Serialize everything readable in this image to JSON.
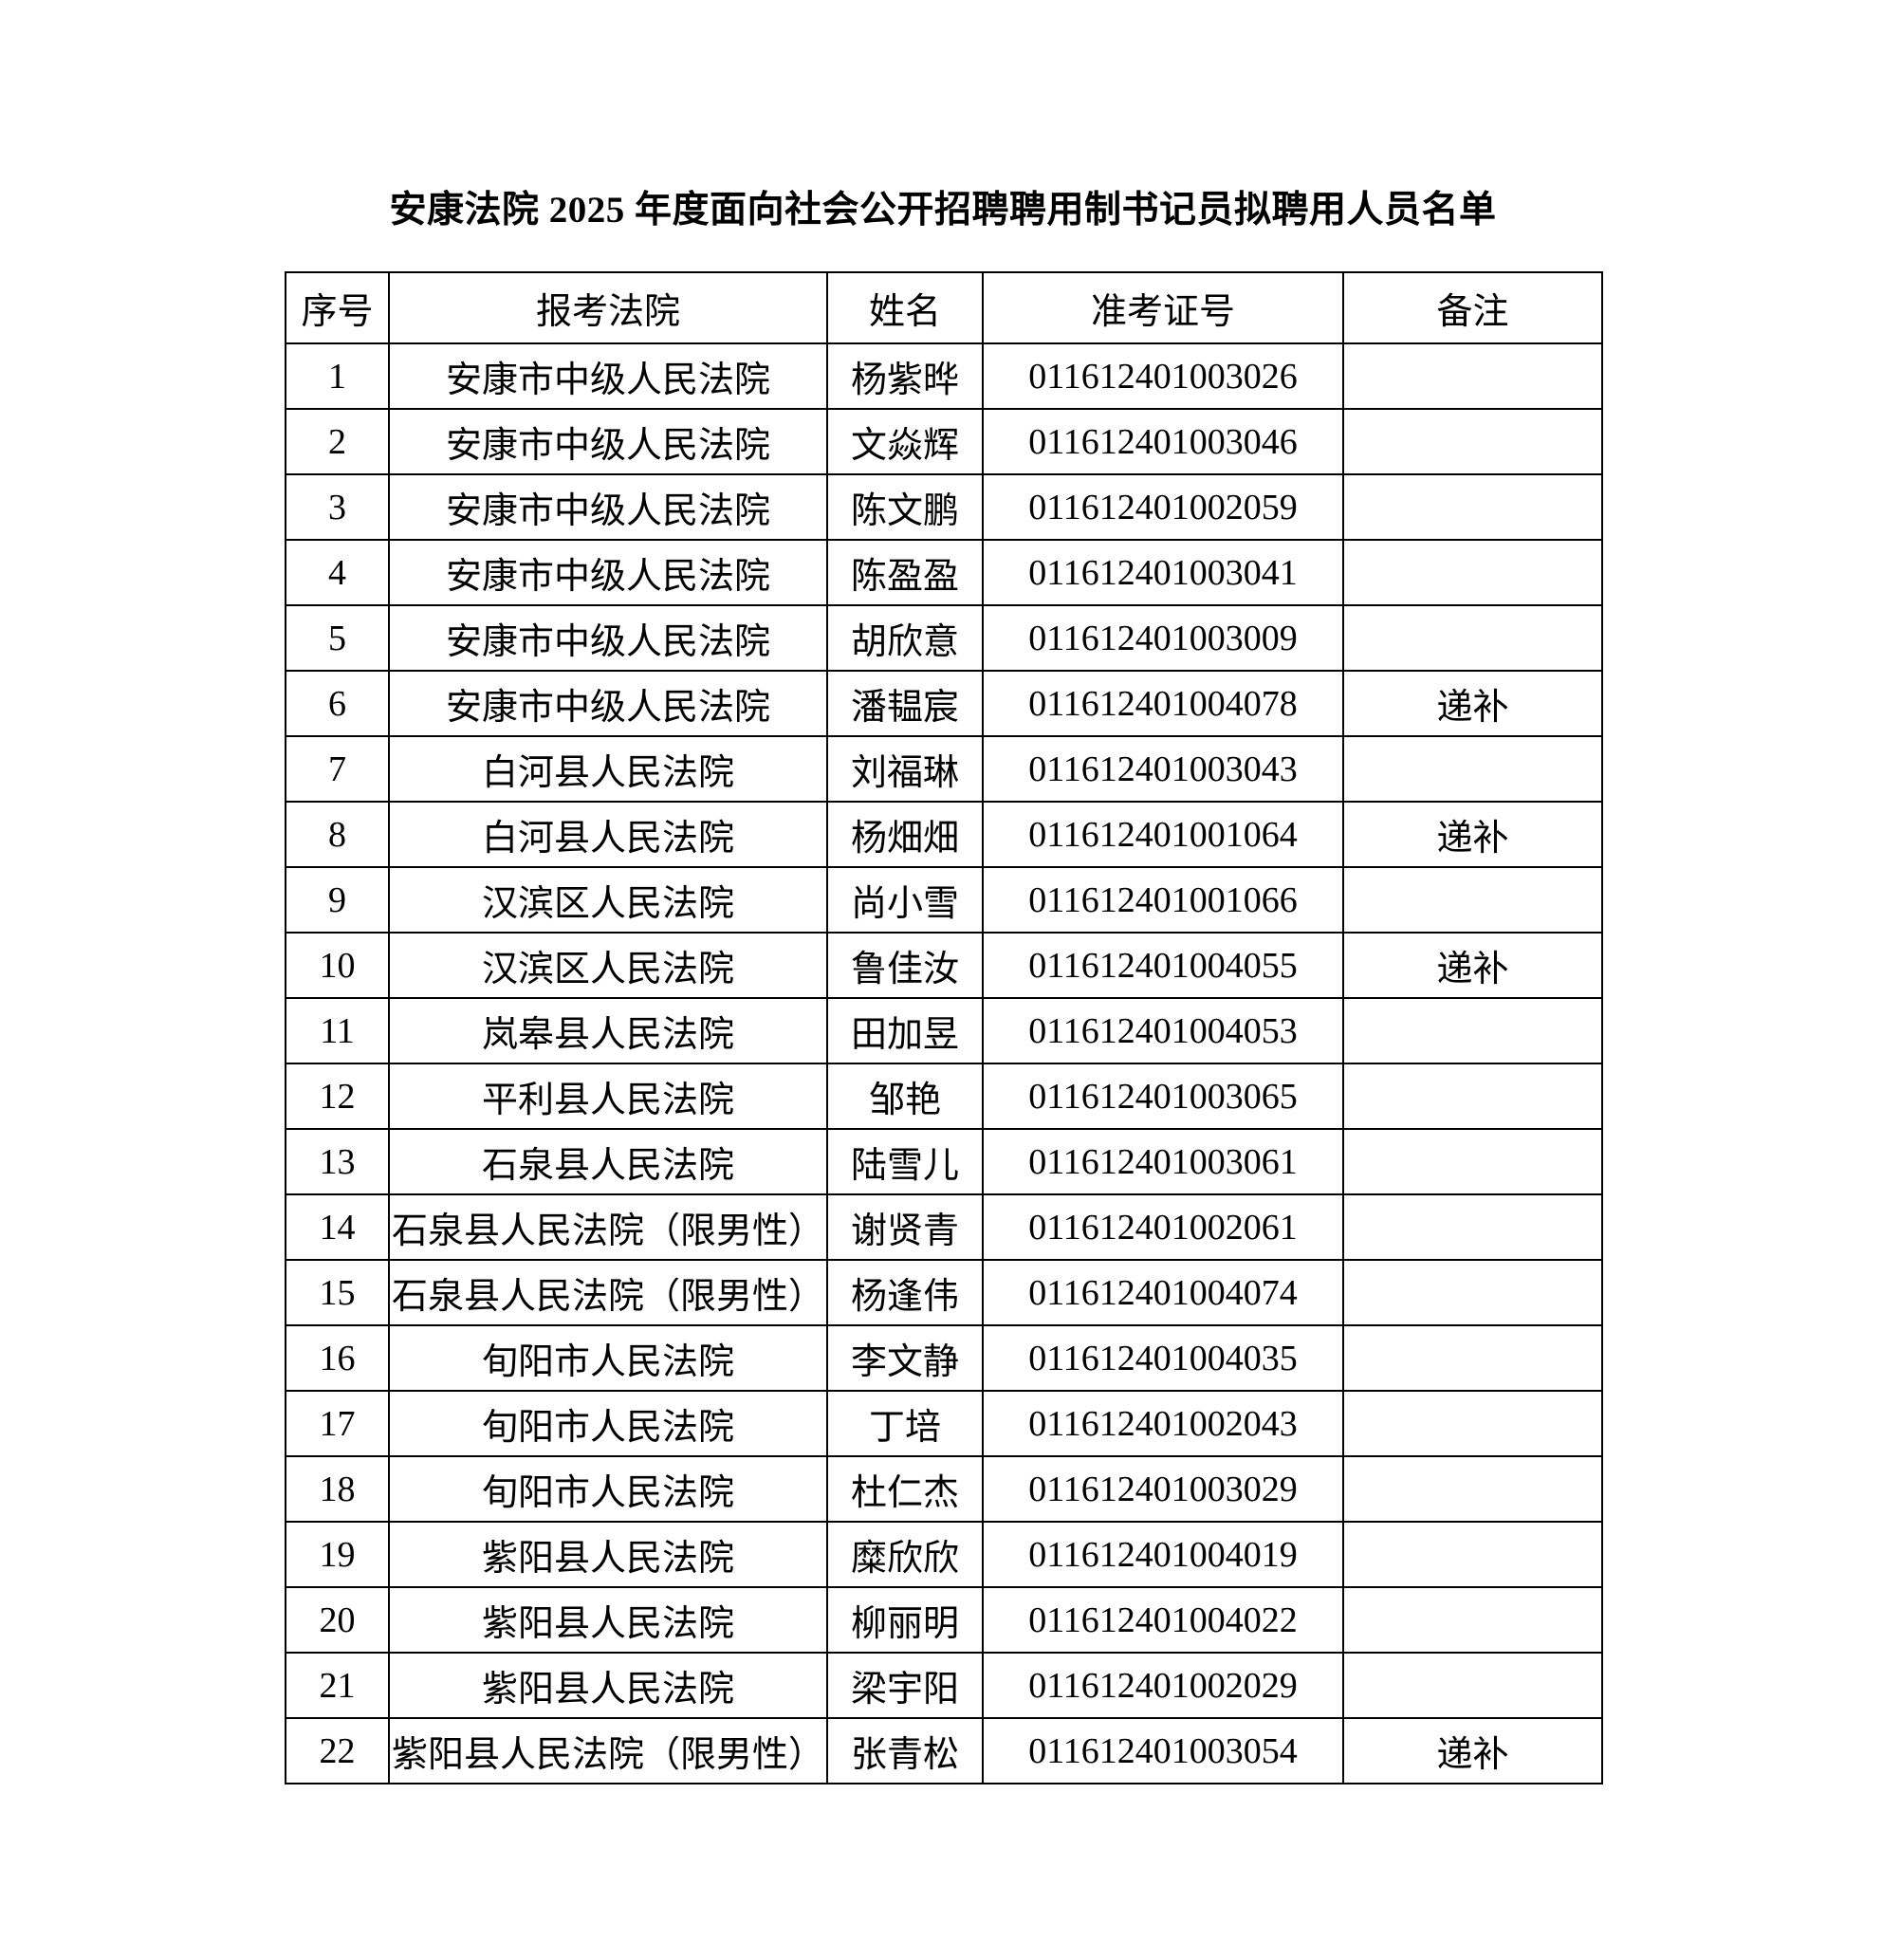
{
  "page": {
    "title": "安康法院 2025 年度面向社会公开招聘聘用制书记员拟聘用人员名单"
  },
  "table": {
    "headers": {
      "index": "序号",
      "court": "报考法院",
      "name": "姓名",
      "ticket": "准考证号",
      "remark": "备注"
    },
    "remark_value_substitute": "递补",
    "rows": [
      {
        "no": "1",
        "court": "安康市中级人民法院",
        "name": "杨紫晔",
        "ticket": "011612401003026",
        "note": ""
      },
      {
        "no": "2",
        "court": "安康市中级人民法院",
        "name": "文焱辉",
        "ticket": "011612401003046",
        "note": ""
      },
      {
        "no": "3",
        "court": "安康市中级人民法院",
        "name": "陈文鹏",
        "ticket": "011612401002059",
        "note": ""
      },
      {
        "no": "4",
        "court": "安康市中级人民法院",
        "name": "陈盈盈",
        "ticket": "011612401003041",
        "note": ""
      },
      {
        "no": "5",
        "court": "安康市中级人民法院",
        "name": "胡欣意",
        "ticket": "011612401003009",
        "note": ""
      },
      {
        "no": "6",
        "court": "安康市中级人民法院",
        "name": "潘韫宸",
        "ticket": "011612401004078",
        "note": "递补"
      },
      {
        "no": "7",
        "court": "白河县人民法院",
        "name": "刘福琳",
        "ticket": "011612401003043",
        "note": ""
      },
      {
        "no": "8",
        "court": "白河县人民法院",
        "name": "杨畑畑",
        "ticket": "011612401001064",
        "note": "递补"
      },
      {
        "no": "9",
        "court": "汉滨区人民法院",
        "name": "尚小雪",
        "ticket": "011612401001066",
        "note": ""
      },
      {
        "no": "10",
        "court": "汉滨区人民法院",
        "name": "鲁佳汝",
        "ticket": "011612401004055",
        "note": "递补"
      },
      {
        "no": "11",
        "court": "岚皋县人民法院",
        "name": "田加昱",
        "ticket": "011612401004053",
        "note": ""
      },
      {
        "no": "12",
        "court": "平利县人民法院",
        "name": "邹艳",
        "ticket": "011612401003065",
        "note": ""
      },
      {
        "no": "13",
        "court": "石泉县人民法院",
        "name": "陆雪儿",
        "ticket": "011612401003061",
        "note": ""
      },
      {
        "no": "14",
        "court": "石泉县人民法院（限男性）",
        "name": "谢贤青",
        "ticket": "011612401002061",
        "note": ""
      },
      {
        "no": "15",
        "court": "石泉县人民法院（限男性）",
        "name": "杨逢伟",
        "ticket": "011612401004074",
        "note": ""
      },
      {
        "no": "16",
        "court": "旬阳市人民法院",
        "name": "李文静",
        "ticket": "011612401004035",
        "note": ""
      },
      {
        "no": "17",
        "court": "旬阳市人民法院",
        "name": "丁培",
        "ticket": "011612401002043",
        "note": ""
      },
      {
        "no": "18",
        "court": "旬阳市人民法院",
        "name": "杜仁杰",
        "ticket": "011612401003029",
        "note": ""
      },
      {
        "no": "19",
        "court": "紫阳县人民法院",
        "name": "糜欣欣",
        "ticket": "011612401004019",
        "note": ""
      },
      {
        "no": "20",
        "court": "紫阳县人民法院",
        "name": "柳丽明",
        "ticket": "011612401004022",
        "note": ""
      },
      {
        "no": "21",
        "court": "紫阳县人民法院",
        "name": "梁宇阳",
        "ticket": "011612401002029",
        "note": ""
      },
      {
        "no": "22",
        "court": "紫阳县人民法院（限男性）",
        "name": "张青松",
        "ticket": "011612401003054",
        "note": "递补"
      }
    ]
  }
}
